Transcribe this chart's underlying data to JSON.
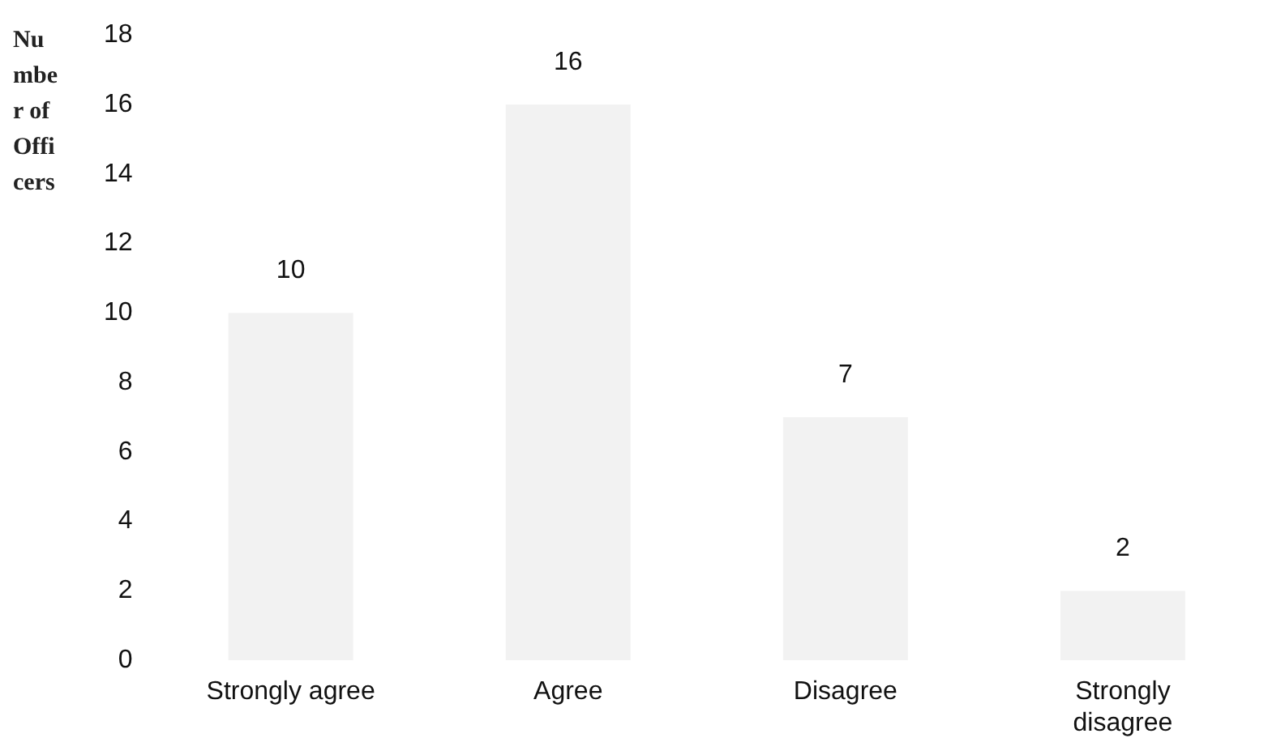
{
  "chart_data": {
    "type": "bar",
    "ylabel": "Number of Officers",
    "categories": [
      "Strongly agree",
      "Agree",
      "Disagree",
      "Strongly disagree"
    ],
    "values": [
      10,
      16,
      7,
      2
    ],
    "color": "#f2f2f2",
    "ylim": [
      0,
      18
    ],
    "yticks": [
      0,
      2,
      4,
      6,
      8,
      10,
      12,
      14,
      16,
      18
    ],
    "grid": false,
    "legend": false,
    "data_labels": true
  }
}
